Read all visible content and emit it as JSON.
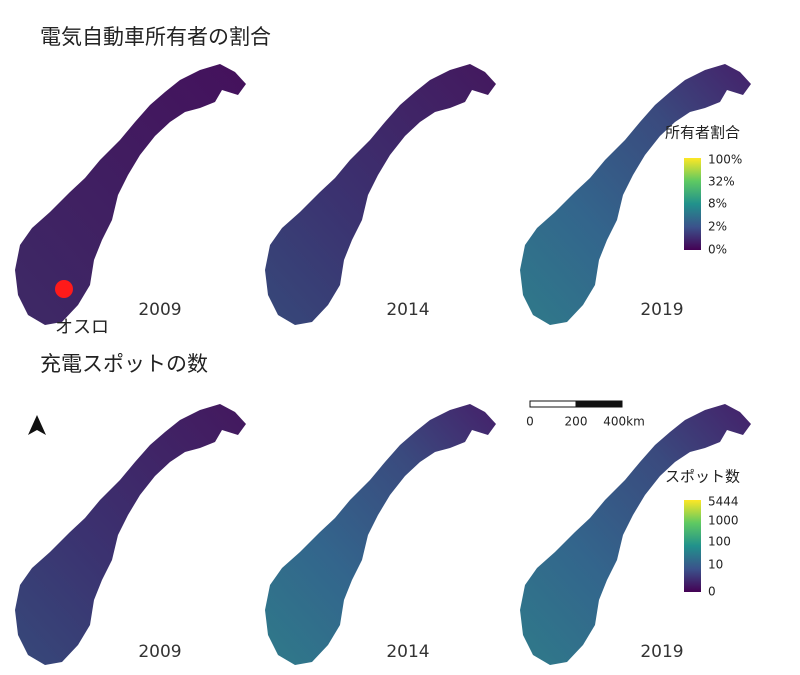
{
  "sections": [
    {
      "title": "電気自動車所有者の割合",
      "years": [
        "2009",
        "2014",
        "2019"
      ],
      "legend": {
        "title": "所有者割合",
        "labels": [
          "100%",
          "32%",
          "8%",
          "2%",
          "0%"
        ]
      }
    },
    {
      "title": "充電スポットの数",
      "years": [
        "2009",
        "2014",
        "2019"
      ],
      "legend": {
        "title": "スポット数",
        "labels": [
          "5444",
          "1000",
          "100",
          "10",
          "0"
        ]
      }
    }
  ],
  "marker": {
    "label": "オスロ"
  },
  "scale_bar": {
    "labels": [
      "0",
      "200",
      "400km"
    ]
  }
}
